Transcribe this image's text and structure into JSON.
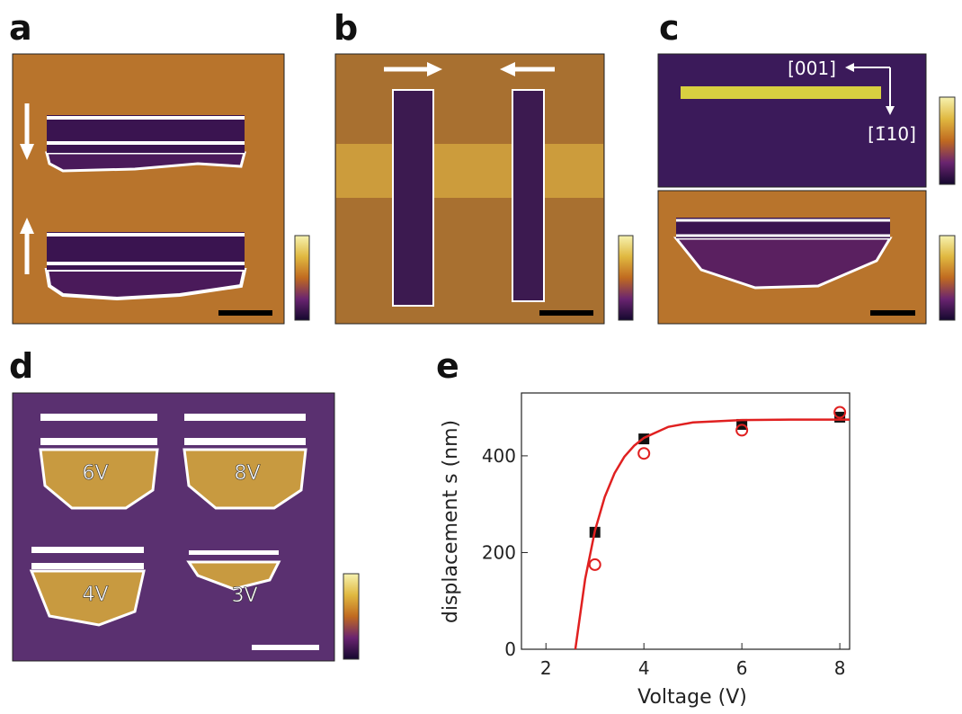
{
  "panel_labels": [
    "a",
    "b",
    "c",
    "d",
    "e"
  ],
  "panel_c": {
    "directions": [
      "[001]",
      "[1̄10]"
    ]
  },
  "panel_d": {
    "voltages": [
      "6V",
      "8V",
      "4V",
      "3V"
    ]
  },
  "chart_data": {
    "type": "scatter",
    "xlabel": "Voltage (V)",
    "ylabel": "displacement s (nm)",
    "xlim": [
      1.5,
      8.2
    ],
    "ylim": [
      0,
      530
    ],
    "xticks": [
      2,
      4,
      6,
      8
    ],
    "yticks": [
      0,
      200,
      400
    ],
    "series": [
      {
        "marker": "square",
        "color": "#111111",
        "x": [
          3,
          4,
          6,
          8
        ],
        "values": [
          242,
          435,
          465,
          480
        ]
      },
      {
        "marker": "circle",
        "color": "#e02020",
        "x": [
          3,
          4,
          6,
          8
        ],
        "values": [
          175,
          405,
          453,
          490
        ]
      },
      {
        "marker": "line",
        "color": "#e02020",
        "x": [
          2.6,
          2.8,
          3,
          3.2,
          3.4,
          3.6,
          3.8,
          4,
          4.5,
          5,
          6,
          7,
          8,
          8.2
        ],
        "values": [
          0,
          145,
          245,
          315,
          364,
          398,
          421,
          437,
          460,
          469,
          474,
          475,
          475,
          475
        ]
      }
    ]
  }
}
